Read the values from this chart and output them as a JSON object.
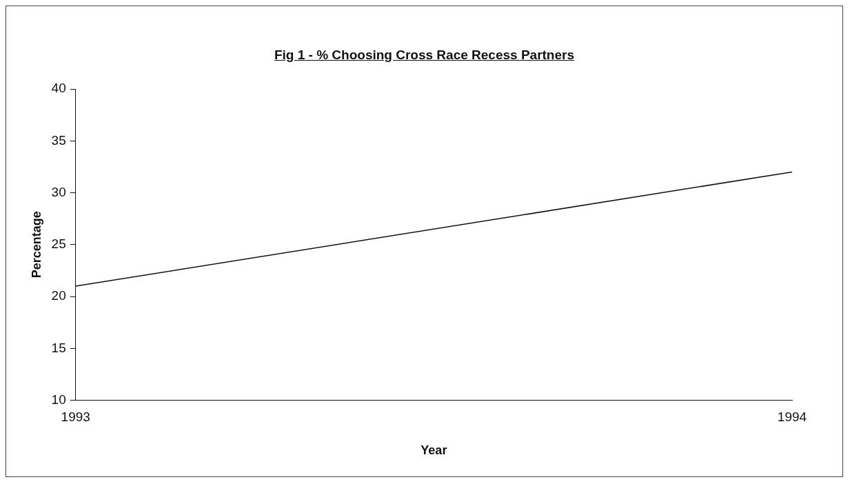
{
  "chart_data": {
    "type": "line",
    "title": "Fig 1 - % Choosing Cross Race Recess Partners",
    "xlabel": "Year",
    "ylabel": "Percentage",
    "categories": [
      "1993",
      "1994"
    ],
    "series": [
      {
        "color": "#111111",
        "values": [
          21,
          32
        ]
      }
    ],
    "ylim": [
      10,
      40
    ],
    "yticks": [
      10,
      15,
      20,
      25,
      30,
      35,
      40
    ],
    "grid": false,
    "legend": false,
    "marker": "none",
    "line_style": "solid"
  }
}
